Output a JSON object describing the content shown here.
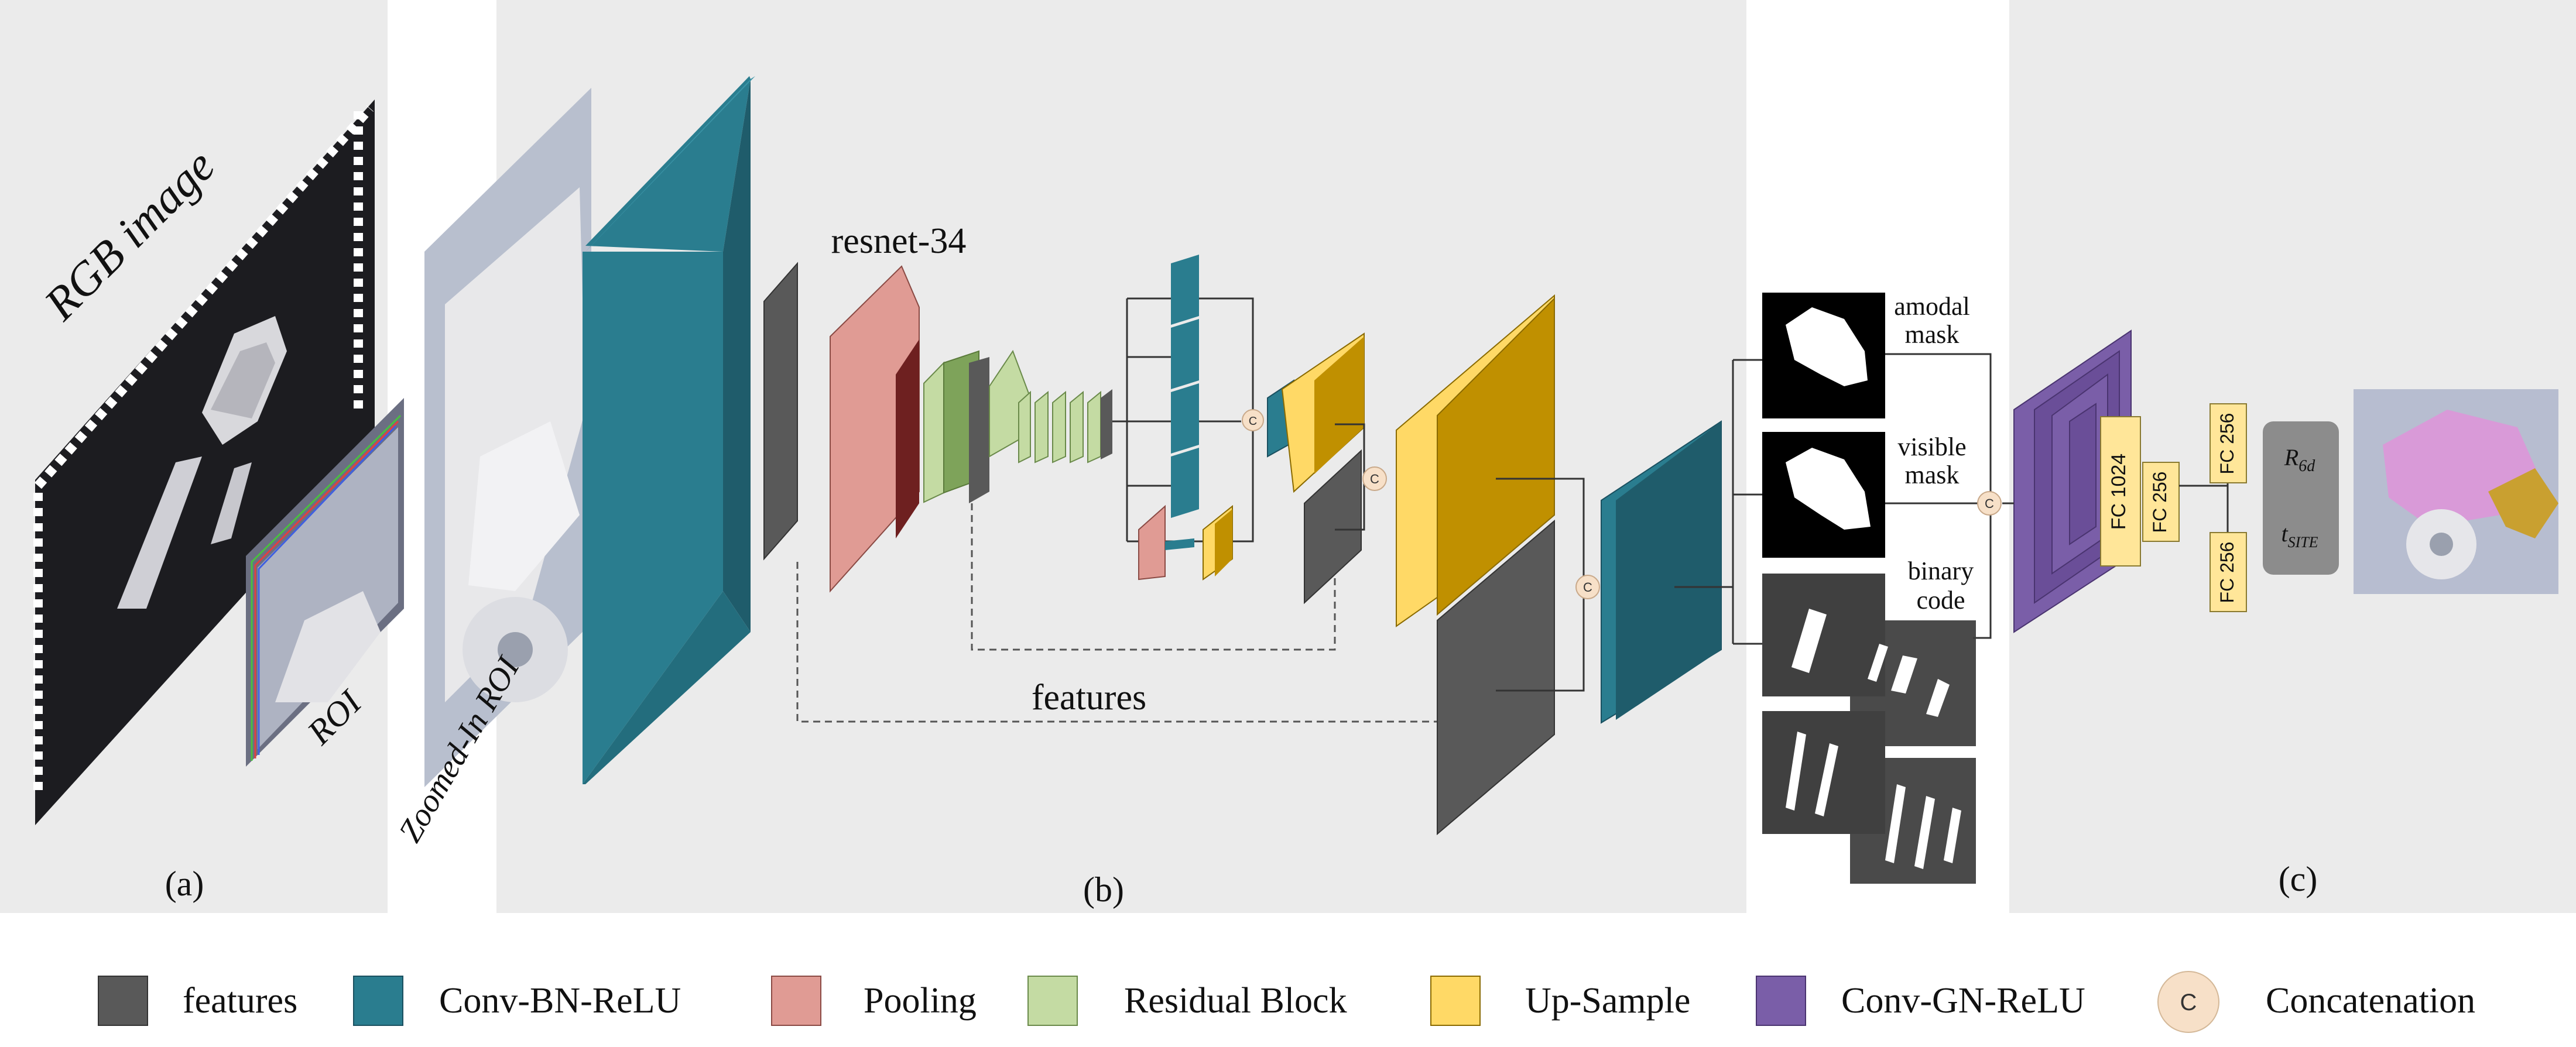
{
  "panels": {
    "a_label": "(a)",
    "b_label": "(b)",
    "c_label": "(c)"
  },
  "panel_a": {
    "rgb_label": "RGB image",
    "roi_label": "ROI"
  },
  "panel_b": {
    "zoomed_label": "Zoomed-In ROI",
    "backbone_label": "resnet-34",
    "features_label": "features",
    "concat_symbol": "C"
  },
  "outputs": {
    "amodal_line1": "amodal",
    "amodal_line2": "mask",
    "visible_line1": "visible",
    "visible_line2": "mask",
    "binary_line1": "binary",
    "binary_line2": "code"
  },
  "panel_c": {
    "fc1": "FC 1024",
    "fc2": "FC 256",
    "fc3": "FC 256",
    "fc4": "FC 256",
    "rot": "R",
    "rot_sub": "6d",
    "trans": "t",
    "trans_sub": "SITE"
  },
  "legend": [
    {
      "label": "features",
      "color": "#595959"
    },
    {
      "label": "Conv-BN-ReLU",
      "color": "#2a7d8f"
    },
    {
      "label": "Pooling",
      "color": "#e09b94"
    },
    {
      "label": "Residual Block",
      "color": "#c4dba3"
    },
    {
      "label": "Up-Sample",
      "color": "#ffd966"
    },
    {
      "label": "Conv-GN-ReLU",
      "color": "#7a5ea8"
    },
    {
      "label": "Concatenation",
      "color": "#f7e0c8",
      "symbol": "C"
    }
  ],
  "colors": {
    "panel_bg": "#ebebeb",
    "features": "#595959",
    "conv_bn": "#2a7d8f",
    "conv_bn_dark": "#1f5c6b",
    "pooling": "#e09b94",
    "pooling_dark": "#6e2020",
    "residual": "#c4dba3",
    "residual_dark": "#7ea35a",
    "upsample": "#ffd966",
    "upsample_dark": "#c09000",
    "conv_gn": "#7a5ea8",
    "fc_box": "#ffe699",
    "pose_box": "#8c8c8c"
  }
}
